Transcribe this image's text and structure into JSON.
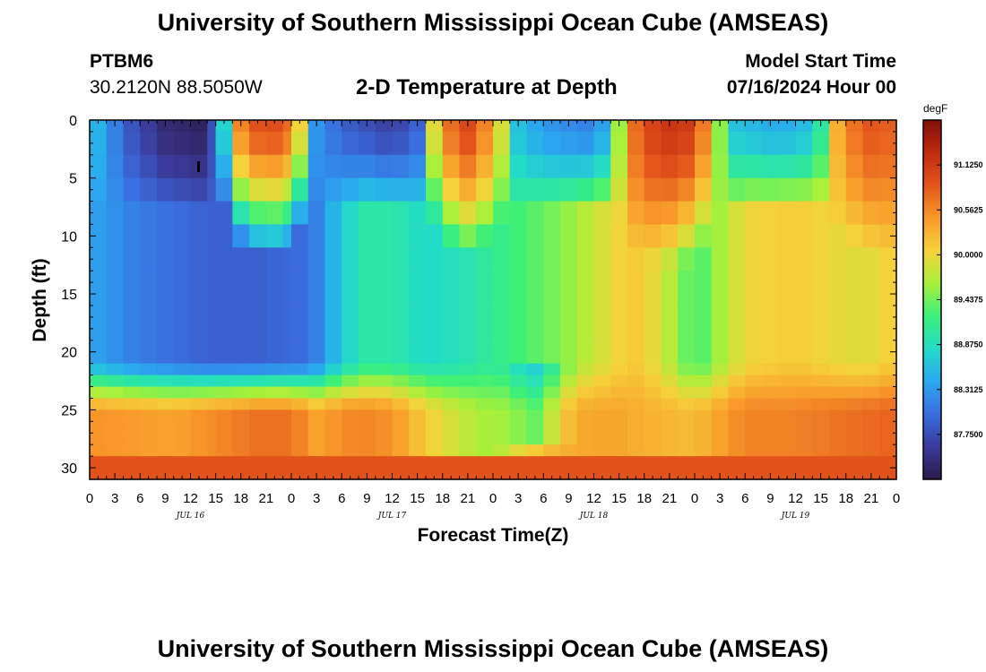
{
  "header": {
    "title": "University of Southern Mississippi Ocean Cube (AMSEAS)",
    "station_name": "PTBM6",
    "station_coords": "30.2120N  88.5050W",
    "plot_title": "2-D Temperature at Depth",
    "model_start_label": "Model Start Time",
    "model_start_value": "07/16/2024 Hour 00"
  },
  "footer": {
    "title": "University of Southern Mississippi Ocean Cube (AMSEAS)"
  },
  "chart_data": {
    "type": "heatmap",
    "title": "2-D Temperature at Depth",
    "xlabel": "Forecast Time(Z)",
    "ylabel": "Depth (ft)",
    "x_unit": "hours since 07/16/2024 00Z",
    "xlim": [
      0,
      96
    ],
    "ylim": [
      0,
      31
    ],
    "x_tick_values": [
      0,
      3,
      6,
      9,
      12,
      15,
      18,
      21,
      24,
      27,
      30,
      33,
      36,
      39,
      42,
      45,
      48,
      51,
      54,
      57,
      60,
      63,
      66,
      69,
      72,
      75,
      78,
      81,
      84,
      87,
      90,
      93,
      96
    ],
    "x_tick_labels": [
      "0",
      "3",
      "6",
      "9",
      "12",
      "15",
      "18",
      "21",
      "0",
      "3",
      "6",
      "9",
      "12",
      "15",
      "18",
      "21",
      "0",
      "3",
      "6",
      "9",
      "12",
      "15",
      "18",
      "21",
      "0",
      "3",
      "6",
      "9",
      "12",
      "15",
      "18",
      "21",
      "0"
    ],
    "day_labels": [
      {
        "hour": 12,
        "label": "JUL 16"
      },
      {
        "hour": 36,
        "label": "JUL 17"
      },
      {
        "hour": 60,
        "label": "JUL 18"
      },
      {
        "hour": 84,
        "label": "JUL 19"
      }
    ],
    "y_tick_values": [
      0,
      5,
      10,
      15,
      20,
      25,
      30
    ],
    "y_tick_labels": [
      "0",
      "5",
      "10",
      "15",
      "20",
      "25",
      "30"
    ],
    "colorbar": {
      "unit": "degF",
      "min": 87.1875,
      "max": 91.6875,
      "tick_values": [
        91.125,
        90.5625,
        90.0,
        89.4375,
        88.875,
        88.3125,
        87.75
      ],
      "tick_labels": [
        "91.1250",
        "90.5625",
        "90.0000",
        "89.4375",
        "88.8750",
        "88.3125",
        "87.7500"
      ],
      "colors": [
        "#2a1a4a",
        "#3b3a9a",
        "#3a6ee0",
        "#2aa8f0",
        "#22dcc8",
        "#3af07a",
        "#a8f03a",
        "#f5d23a",
        "#f89a2a",
        "#e4561c",
        "#c02a10",
        "#800f0a"
      ]
    },
    "depth_levels_ft": [
      0,
      1,
      3,
      5,
      7,
      9,
      11,
      13,
      16,
      19,
      21,
      22,
      23,
      24,
      25,
      26,
      27,
      28,
      29,
      30,
      31
    ],
    "time_hours": [
      0,
      2,
      4,
      6,
      8,
      10,
      12,
      14,
      15,
      17,
      19,
      21,
      23,
      24,
      26,
      28,
      30,
      32,
      34,
      36,
      38,
      40,
      42,
      44,
      46,
      48,
      50,
      52,
      54,
      56,
      58,
      60,
      62,
      64,
      66,
      68,
      70,
      72,
      74,
      76,
      78,
      80,
      82,
      84,
      86,
      88,
      90,
      92,
      94,
      96
    ],
    "summary": "Near-surface layer (0-10 ft) alternates between cool (~87.4-88.3 degF) periods near 06-15Z each day and warm (~90.5-91.3 degF) periods near 18-03Z; mid-depths (10-22 ft) cool (~88 degF) on JUL 16, warming to ~89.3 degF on JUL 17-18 and ~90.1 degF on JUL 19; bottom layer (24-31 ft) consistently warm (~90.3-91.2 degF) with a cooler tongue near JUL 17 00-03Z at 24-28 ft."
  }
}
